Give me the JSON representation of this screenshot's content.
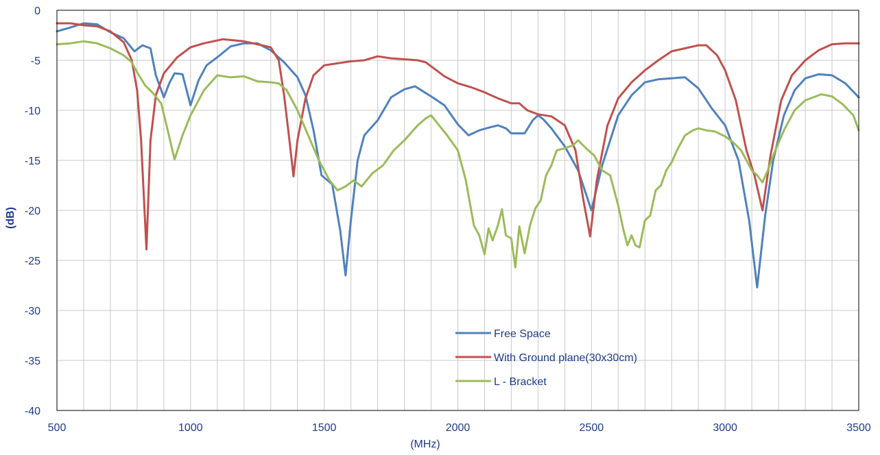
{
  "chart_data": {
    "type": "line",
    "title": "",
    "xlabel": "(MHz)",
    "ylabel": "(dB)",
    "xlim": [
      500,
      3500
    ],
    "ylim": [
      -40,
      0
    ],
    "x_ticks": [
      500,
      1000,
      1500,
      2000,
      2500,
      3000,
      3500
    ],
    "y_ticks": [
      0,
      -5,
      -10,
      -15,
      -20,
      -25,
      -30,
      -35,
      -40
    ],
    "minor_x_step": 100,
    "grid": true,
    "legend_position": "bottom-center",
    "series": [
      {
        "name": "Free Space",
        "color": "#4f81bd",
        "points": [
          [
            500,
            -2.1
          ],
          [
            540,
            -1.8
          ],
          [
            600,
            -1.3
          ],
          [
            650,
            -1.4
          ],
          [
            700,
            -2.2
          ],
          [
            750,
            -2.8
          ],
          [
            790,
            -4.1
          ],
          [
            820,
            -3.5
          ],
          [
            850,
            -3.8
          ],
          [
            870,
            -6.5
          ],
          [
            900,
            -8.7
          ],
          [
            920,
            -7.3
          ],
          [
            940,
            -6.3
          ],
          [
            970,
            -6.4
          ],
          [
            1000,
            -9.5
          ],
          [
            1030,
            -7
          ],
          [
            1060,
            -5.5
          ],
          [
            1100,
            -4.7
          ],
          [
            1150,
            -3.6
          ],
          [
            1200,
            -3.3
          ],
          [
            1250,
            -3.3
          ],
          [
            1300,
            -4
          ],
          [
            1350,
            -5.2
          ],
          [
            1400,
            -6.7
          ],
          [
            1430,
            -8.5
          ],
          [
            1460,
            -12
          ],
          [
            1490,
            -16.5
          ],
          [
            1530,
            -17.4
          ],
          [
            1560,
            -22
          ],
          [
            1580,
            -26.5
          ],
          [
            1600,
            -21
          ],
          [
            1625,
            -15
          ],
          [
            1650,
            -12.5
          ],
          [
            1700,
            -11
          ],
          [
            1750,
            -8.7
          ],
          [
            1800,
            -7.9
          ],
          [
            1840,
            -7.6
          ],
          [
            1870,
            -8.1
          ],
          [
            1900,
            -8.6
          ],
          [
            1950,
            -9.5
          ],
          [
            2000,
            -11.4
          ],
          [
            2040,
            -12.5
          ],
          [
            2080,
            -12
          ],
          [
            2120,
            -11.7
          ],
          [
            2150,
            -11.5
          ],
          [
            2180,
            -11.8
          ],
          [
            2200,
            -12.3
          ],
          [
            2250,
            -12.3
          ],
          [
            2280,
            -11
          ],
          [
            2300,
            -10.5
          ],
          [
            2320,
            -10.9
          ],
          [
            2350,
            -11.8
          ],
          [
            2400,
            -13.6
          ],
          [
            2450,
            -16
          ],
          [
            2500,
            -20
          ],
          [
            2540,
            -15.5
          ],
          [
            2600,
            -10.5
          ],
          [
            2650,
            -8.5
          ],
          [
            2700,
            -7.2
          ],
          [
            2750,
            -6.9
          ],
          [
            2800,
            -6.8
          ],
          [
            2850,
            -6.7
          ],
          [
            2900,
            -7.8
          ],
          [
            2950,
            -9.8
          ],
          [
            3000,
            -11.5
          ],
          [
            3050,
            -15
          ],
          [
            3090,
            -21
          ],
          [
            3120,
            -27.7
          ],
          [
            3150,
            -20.5
          ],
          [
            3180,
            -15
          ],
          [
            3220,
            -10.5
          ],
          [
            3260,
            -8
          ],
          [
            3300,
            -6.8
          ],
          [
            3350,
            -6.4
          ],
          [
            3400,
            -6.5
          ],
          [
            3450,
            -7.3
          ],
          [
            3500,
            -8.7
          ]
        ]
      },
      {
        "name": "With Ground plane(30x30cm)",
        "color": "#c0504d",
        "points": [
          [
            500,
            -1.3
          ],
          [
            550,
            -1.3
          ],
          [
            600,
            -1.5
          ],
          [
            650,
            -1.6
          ],
          [
            700,
            -2.1
          ],
          [
            750,
            -3.2
          ],
          [
            780,
            -5
          ],
          [
            800,
            -8
          ],
          [
            815,
            -13
          ],
          [
            835,
            -23.9
          ],
          [
            850,
            -13
          ],
          [
            870,
            -8.5
          ],
          [
            900,
            -6.3
          ],
          [
            950,
            -4.7
          ],
          [
            1000,
            -3.7
          ],
          [
            1050,
            -3.3
          ],
          [
            1120,
            -2.9
          ],
          [
            1200,
            -3.1
          ],
          [
            1250,
            -3.4
          ],
          [
            1300,
            -3.7
          ],
          [
            1330,
            -5
          ],
          [
            1350,
            -8.5
          ],
          [
            1370,
            -13
          ],
          [
            1385,
            -16.6
          ],
          [
            1400,
            -13
          ],
          [
            1430,
            -8.8
          ],
          [
            1460,
            -6.5
          ],
          [
            1500,
            -5.5
          ],
          [
            1550,
            -5.3
          ],
          [
            1600,
            -5.1
          ],
          [
            1650,
            -5
          ],
          [
            1700,
            -4.6
          ],
          [
            1750,
            -4.8
          ],
          [
            1800,
            -4.9
          ],
          [
            1850,
            -5
          ],
          [
            1880,
            -5.2
          ],
          [
            1920,
            -6
          ],
          [
            1950,
            -6.6
          ],
          [
            2000,
            -7.3
          ],
          [
            2050,
            -7.7
          ],
          [
            2100,
            -8.2
          ],
          [
            2150,
            -8.8
          ],
          [
            2200,
            -9.3
          ],
          [
            2230,
            -9.3
          ],
          [
            2260,
            -10
          ],
          [
            2300,
            -10.4
          ],
          [
            2350,
            -10.6
          ],
          [
            2400,
            -11.5
          ],
          [
            2440,
            -14
          ],
          [
            2470,
            -19
          ],
          [
            2495,
            -22.6
          ],
          [
            2520,
            -17
          ],
          [
            2560,
            -11.5
          ],
          [
            2600,
            -8.8
          ],
          [
            2650,
            -7.2
          ],
          [
            2700,
            -6
          ],
          [
            2750,
            -5
          ],
          [
            2800,
            -4.1
          ],
          [
            2850,
            -3.8
          ],
          [
            2900,
            -3.5
          ],
          [
            2930,
            -3.5
          ],
          [
            2970,
            -4.5
          ],
          [
            3000,
            -6
          ],
          [
            3040,
            -9
          ],
          [
            3080,
            -14
          ],
          [
            3110,
            -16.5
          ],
          [
            3140,
            -20
          ],
          [
            3170,
            -14.5
          ],
          [
            3210,
            -9
          ],
          [
            3250,
            -6.5
          ],
          [
            3300,
            -5
          ],
          [
            3350,
            -4
          ],
          [
            3400,
            -3.4
          ],
          [
            3450,
            -3.3
          ],
          [
            3500,
            -3.3
          ]
        ]
      },
      {
        "name": "L - Bracket",
        "color": "#9bbb59",
        "points": [
          [
            500,
            -3.4
          ],
          [
            550,
            -3.3
          ],
          [
            600,
            -3.1
          ],
          [
            650,
            -3.3
          ],
          [
            700,
            -3.8
          ],
          [
            750,
            -4.5
          ],
          [
            780,
            -5.2
          ],
          [
            800,
            -6.2
          ],
          [
            830,
            -7.5
          ],
          [
            860,
            -8.3
          ],
          [
            890,
            -9.3
          ],
          [
            910,
            -11.5
          ],
          [
            940,
            -14.9
          ],
          [
            970,
            -12.5
          ],
          [
            1000,
            -10.5
          ],
          [
            1050,
            -8
          ],
          [
            1100,
            -6.5
          ],
          [
            1150,
            -6.7
          ],
          [
            1200,
            -6.6
          ],
          [
            1250,
            -7.1
          ],
          [
            1300,
            -7.2
          ],
          [
            1330,
            -7.3
          ],
          [
            1360,
            -8
          ],
          [
            1400,
            -10
          ],
          [
            1440,
            -12.5
          ],
          [
            1480,
            -15
          ],
          [
            1520,
            -17
          ],
          [
            1550,
            -18
          ],
          [
            1580,
            -17.6
          ],
          [
            1610,
            -17
          ],
          [
            1640,
            -17.6
          ],
          [
            1680,
            -16.3
          ],
          [
            1720,
            -15.5
          ],
          [
            1760,
            -14
          ],
          [
            1800,
            -13
          ],
          [
            1850,
            -11.5
          ],
          [
            1880,
            -10.8
          ],
          [
            1900,
            -10.5
          ],
          [
            1930,
            -11.5
          ],
          [
            1960,
            -12.5
          ],
          [
            2000,
            -14
          ],
          [
            2030,
            -17
          ],
          [
            2060,
            -21.5
          ],
          [
            2080,
            -22.5
          ],
          [
            2100,
            -24.4
          ],
          [
            2115,
            -21.8
          ],
          [
            2130,
            -23
          ],
          [
            2150,
            -21.5
          ],
          [
            2165,
            -19.9
          ],
          [
            2180,
            -22.5
          ],
          [
            2200,
            -22.8
          ],
          [
            2215,
            -25.7
          ],
          [
            2230,
            -21.6
          ],
          [
            2250,
            -24.3
          ],
          [
            2270,
            -21.5
          ],
          [
            2290,
            -19.8
          ],
          [
            2310,
            -19
          ],
          [
            2330,
            -16.5
          ],
          [
            2350,
            -15.5
          ],
          [
            2370,
            -14
          ],
          [
            2400,
            -13.8
          ],
          [
            2430,
            -13.5
          ],
          [
            2450,
            -13
          ],
          [
            2480,
            -13.8
          ],
          [
            2510,
            -14.5
          ],
          [
            2540,
            -16
          ],
          [
            2570,
            -16.5
          ],
          [
            2600,
            -19.5
          ],
          [
            2620,
            -22
          ],
          [
            2635,
            -23.5
          ],
          [
            2650,
            -22.5
          ],
          [
            2665,
            -23.5
          ],
          [
            2680,
            -23.7
          ],
          [
            2700,
            -21
          ],
          [
            2720,
            -20.5
          ],
          [
            2740,
            -18
          ],
          [
            2760,
            -17.5
          ],
          [
            2780,
            -16
          ],
          [
            2800,
            -15.2
          ],
          [
            2820,
            -14
          ],
          [
            2850,
            -12.5
          ],
          [
            2880,
            -12
          ],
          [
            2900,
            -11.8
          ],
          [
            2930,
            -12
          ],
          [
            2960,
            -12.1
          ],
          [
            3000,
            -12.6
          ],
          [
            3030,
            -13.2
          ],
          [
            3060,
            -14
          ],
          [
            3080,
            -15
          ],
          [
            3100,
            -16
          ],
          [
            3120,
            -16.5
          ],
          [
            3140,
            -17.2
          ],
          [
            3160,
            -16
          ],
          [
            3180,
            -14.5
          ],
          [
            3220,
            -12
          ],
          [
            3260,
            -10
          ],
          [
            3300,
            -9
          ],
          [
            3330,
            -8.7
          ],
          [
            3360,
            -8.4
          ],
          [
            3400,
            -8.6
          ],
          [
            3440,
            -9.4
          ],
          [
            3480,
            -10.5
          ],
          [
            3500,
            -12
          ]
        ]
      }
    ]
  }
}
